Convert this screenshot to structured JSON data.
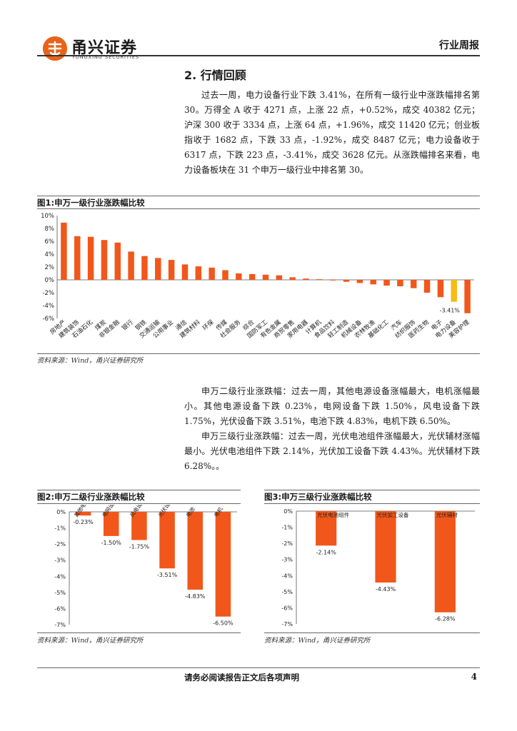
{
  "header": {
    "brand_name": "甬兴证券",
    "brand_sub": "YONGXING SECURITIES",
    "report_type": "行业周报"
  },
  "section": {
    "title": "2. 行情回顾",
    "paragraph1": "过去一周，电力设备行业下跌 3.41%，在所有一级行业中涨跌幅排名第 30。万得全 A 收于 4271 点，上涨 22 点，+0.52%，成交 40382 亿元；沪深 300 收于 3334 点，上涨 64 点，+1.96%，成交 11420 亿元；创业板指收于 1682 点，下跌 33 点，-1.92%，成交 8487 亿元；电力设备收于 6317 点，下跌 223 点，-3.41%，成交 3628 亿元。从涨跌幅排名来看，电力设备板块在 31 个申万一级行业中排名第 30。",
    "paragraph2": "申万二级行业涨跌幅：过去一周，其他电源设备涨幅最大，电机涨幅最小。其他电源设备下跌 0.23%，电网设备下跌 1.50%，风电设备下跌 1.75%，光伏设备下跌 3.51%，电池下跌 4.83%，电机下跌 6.50%。",
    "paragraph3": "申万三级行业涨跌幅：过去一周，光伏电池组件涨幅最大，光伏辅材涨幅最小。光伏电池组件下跌 2.14%，光伏加工设备下跌 4.43%。光伏辅材下跌 6.28%。。"
  },
  "figures": {
    "fig1_title": "图1:申万一级行业涨跌幅比较",
    "fig2_title": "图2:申万二级行业涨跌幅比较",
    "fig3_title": "图3:申万三级行业涨跌幅比较",
    "source": "资料来源：Wind，甬兴证券研究所"
  },
  "chart_data": [
    {
      "type": "bar",
      "categories": [
        "房地产",
        "建筑装饰",
        "石油石化",
        "煤炭",
        "非银金融",
        "银行",
        "钢铁",
        "交通运输",
        "公用事业",
        "通信",
        "建筑材料",
        "环保",
        "传媒",
        "社会服务",
        "综合",
        "国防军工",
        "有色金属",
        "商贸零售",
        "家用电器",
        "计算机",
        "食品饮料",
        "轻工制造",
        "机械设备",
        "农林牧渔",
        "基础化工",
        "汽车",
        "纺织服饰",
        "医药生物",
        "电子",
        "电力设备",
        "美容护理"
      ],
      "values": [
        8.9,
        6.8,
        6.7,
        6.2,
        5.8,
        4.4,
        3.7,
        3.4,
        3.1,
        2.4,
        2.1,
        1.9,
        1.5,
        1.0,
        0.9,
        0.8,
        0.7,
        0.4,
        0.2,
        0.1,
        -0.1,
        -0.3,
        -0.5,
        -0.7,
        -0.9,
        -1.0,
        -1.3,
        -2.0,
        -2.7,
        -3.41,
        -5.2
      ],
      "highlight": {
        "category": "电力设备",
        "label": "-3.41%"
      },
      "ylim": [
        -6,
        10
      ],
      "yticks": [
        "-6%",
        "-4%",
        "-2%",
        "0%",
        "2%",
        "4%",
        "6%",
        "8%",
        "10%"
      ],
      "colors": {
        "bar": "#f1571b",
        "highlight": "#f6bb16"
      }
    },
    {
      "type": "bar",
      "categories": [
        "其他电源设备",
        "电网设备",
        "风电设备",
        "光伏设备",
        "电池",
        "电机"
      ],
      "values": [
        -0.23,
        -1.5,
        -1.75,
        -3.51,
        -4.83,
        -6.5
      ],
      "data_labels": [
        "-0.23%",
        "-1.50%",
        "-1.75%",
        "-3.51%",
        "-4.83%",
        "-6.50%"
      ],
      "ylim": [
        -7,
        0
      ],
      "yticks": [
        "0%",
        "-1%",
        "-2%",
        "-3%",
        "-4%",
        "-5%",
        "-6%",
        "-7%"
      ],
      "colors": {
        "bar": "#f1571b"
      }
    },
    {
      "type": "bar",
      "categories": [
        "光伏电池组件",
        "光伏加工设备",
        "光伏辅材"
      ],
      "values": [
        -2.14,
        -4.43,
        -6.28
      ],
      "data_labels": [
        "-2.14%",
        "-4.43%",
        "-6.28%"
      ],
      "ylim": [
        -7,
        0
      ],
      "yticks": [
        "0%",
        "-1%",
        "-2%",
        "-3%",
        "-4%",
        "-5%",
        "-6%",
        "-7%"
      ],
      "colors": {
        "bar": "#f1571b"
      }
    }
  ],
  "footer": {
    "disclaimer": "请务必阅读报告正文后各项声明",
    "page": "4"
  }
}
